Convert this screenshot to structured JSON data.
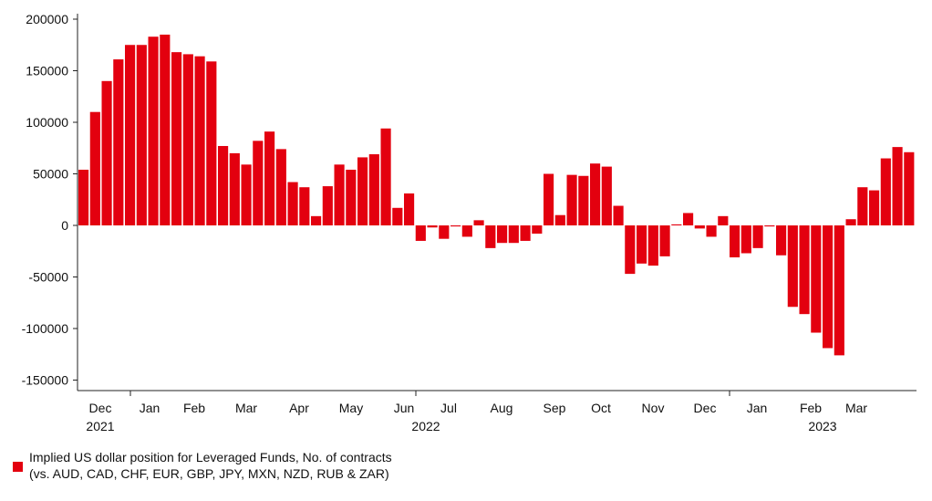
{
  "chart_data": {
    "type": "bar",
    "title": "",
    "xlabel": "",
    "ylabel": "",
    "ylim": [
      -160000,
      205000
    ],
    "yticks": [
      200000,
      150000,
      100000,
      50000,
      0,
      -50000,
      -100000,
      -150000
    ],
    "bar_color": "#e3000f",
    "x_month_labels": [
      "Dec",
      "Jan",
      "Feb",
      "Mar",
      "Apr",
      "May",
      "Jun",
      "Jul",
      "Aug",
      "Sep",
      "Oct",
      "Nov",
      "Dec",
      "Jan",
      "Feb",
      "Mar"
    ],
    "x_year_labels": [
      "2021",
      "2022",
      "2023"
    ],
    "series": [
      {
        "name": "Implied US dollar position for Leveraged Funds, No. of contracts",
        "values": [
          54000,
          110000,
          140000,
          161000,
          175000,
          175000,
          183000,
          185000,
          168000,
          166000,
          164000,
          159000,
          77000,
          70000,
          59000,
          82000,
          91000,
          74000,
          42000,
          37000,
          9000,
          38000,
          59000,
          54000,
          66000,
          69000,
          94000,
          17000,
          31000,
          -15000,
          -2000,
          -13000,
          -1000,
          -11000,
          5000,
          -22000,
          -17000,
          -17000,
          -15000,
          -8000,
          50000,
          10000,
          49000,
          48000,
          60000,
          57000,
          19000,
          -47000,
          -37000,
          -39000,
          -30000,
          1000,
          12000,
          -3000,
          -11000,
          9000,
          -31000,
          -27000,
          -22000,
          -1000,
          -29000,
          -79000,
          -86000,
          -104000,
          -119000,
          -126000,
          6000,
          37000,
          34000,
          65000,
          76000,
          71000
        ]
      }
    ]
  },
  "legend": {
    "line1": "Implied US dollar position for Leveraged Funds, No. of contracts",
    "line2": "(vs. AUD, CAD, CHF, EUR, GBP, JPY, MXN, NZD, RUB & ZAR)"
  }
}
